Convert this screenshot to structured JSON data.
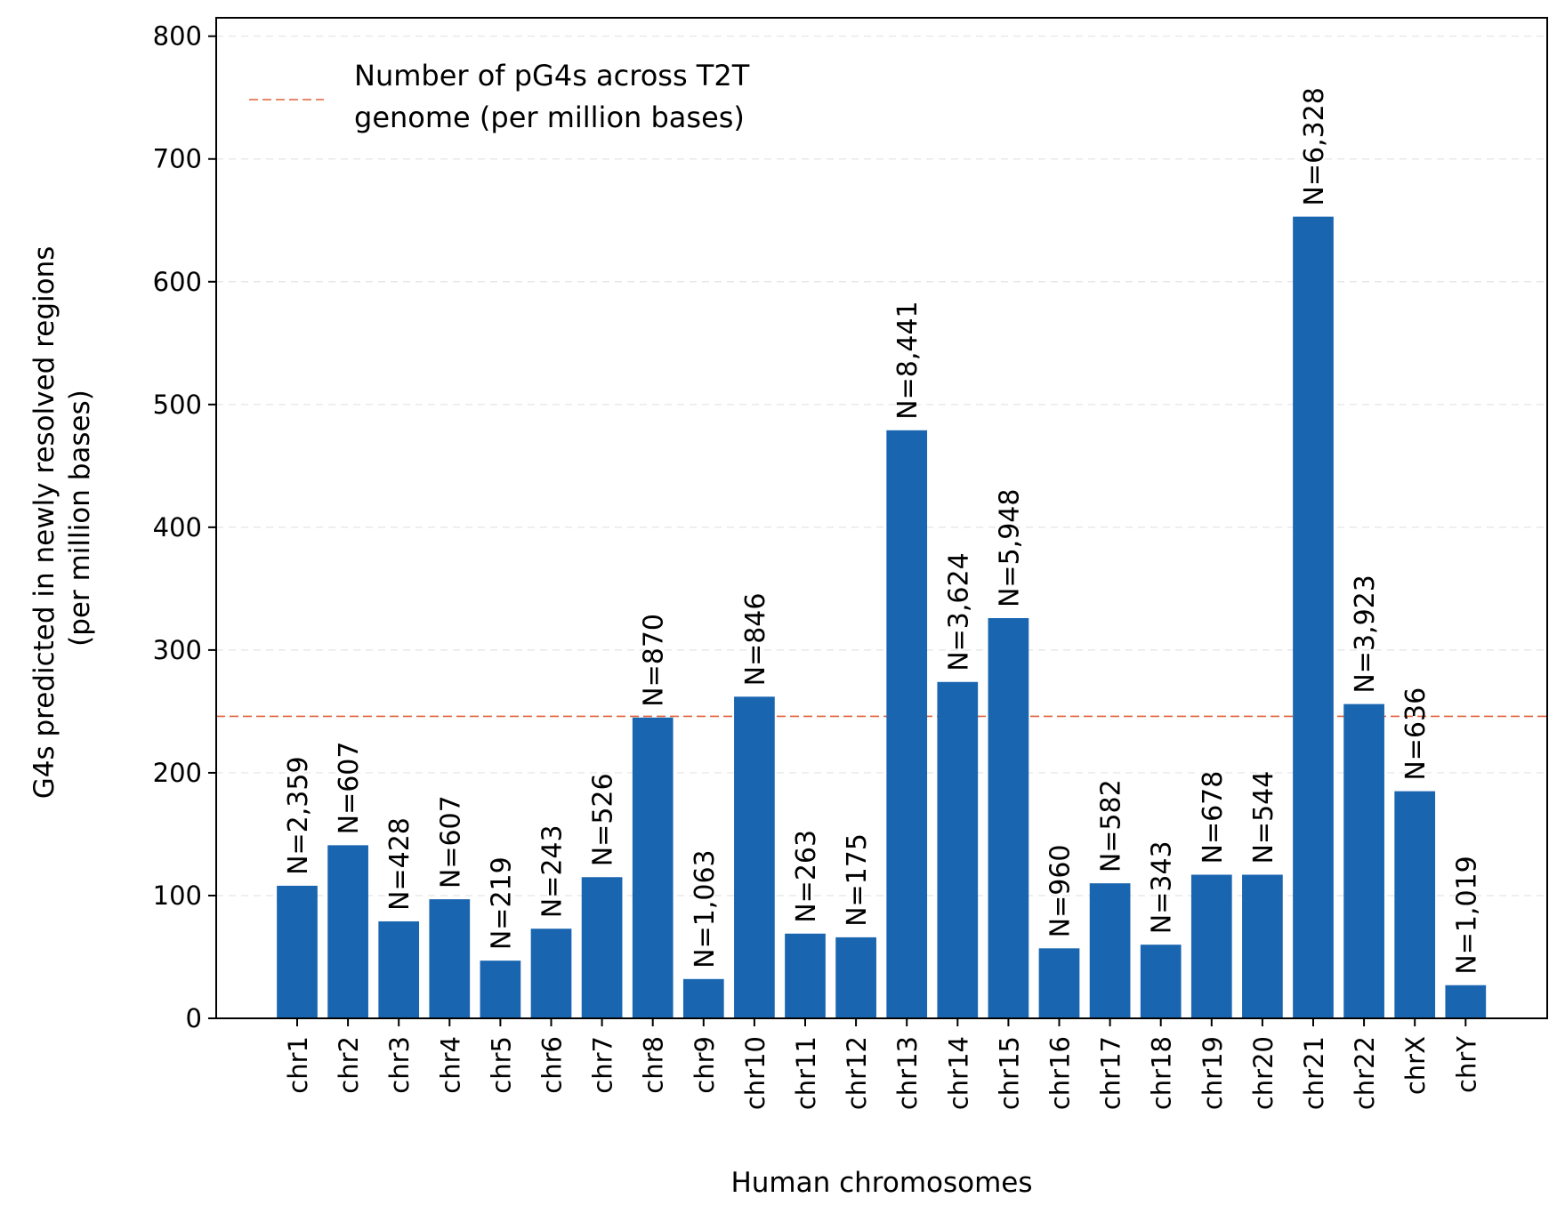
{
  "chart_data": {
    "type": "bar",
    "categories": [
      "chr1",
      "chr2",
      "chr3",
      "chr4",
      "chr5",
      "chr6",
      "chr7",
      "chr8",
      "chr9",
      "chr10",
      "chr11",
      "chr12",
      "chr13",
      "chr14",
      "chr15",
      "chr16",
      "chr17",
      "chr18",
      "chr19",
      "chr20",
      "chr21",
      "chr22",
      "chrX",
      "chrY"
    ],
    "values": [
      108,
      141,
      79,
      97,
      47,
      73,
      115,
      245,
      32,
      262,
      69,
      66,
      479,
      274,
      326,
      57,
      110,
      60,
      117,
      117,
      653,
      256,
      185,
      27
    ],
    "data_labels": [
      "N=2,359",
      "N=607",
      "N=428",
      "N=607",
      "N=219",
      "N=243",
      "N=526",
      "N=870",
      "N=1,063",
      "N=846",
      "N=263",
      "N=175",
      "N=8,441",
      "N=3,624",
      "N=5,948",
      "N=960",
      "N=582",
      "N=343",
      "N=678",
      "N=544",
      "N=6,328",
      "N=3,923",
      "N=636",
      "N=1,019"
    ],
    "xlabel": "Human chromosomes",
    "ylabel_lines": [
      "G4s predicted in newly resolved regions",
      "(per million bases)"
    ],
    "ylim": [
      0,
      815
    ],
    "yticks": [
      0,
      100,
      200,
      300,
      400,
      500,
      600,
      700,
      800
    ],
    "grid": "y",
    "bar_color": "#1a65b0",
    "reference_line": {
      "value": 246,
      "color": "#e0603a",
      "style": "dashed",
      "legend_lines": [
        "Number of pG4s across T2T",
        "genome (per million bases)"
      ]
    },
    "legend_position": "top-left"
  }
}
